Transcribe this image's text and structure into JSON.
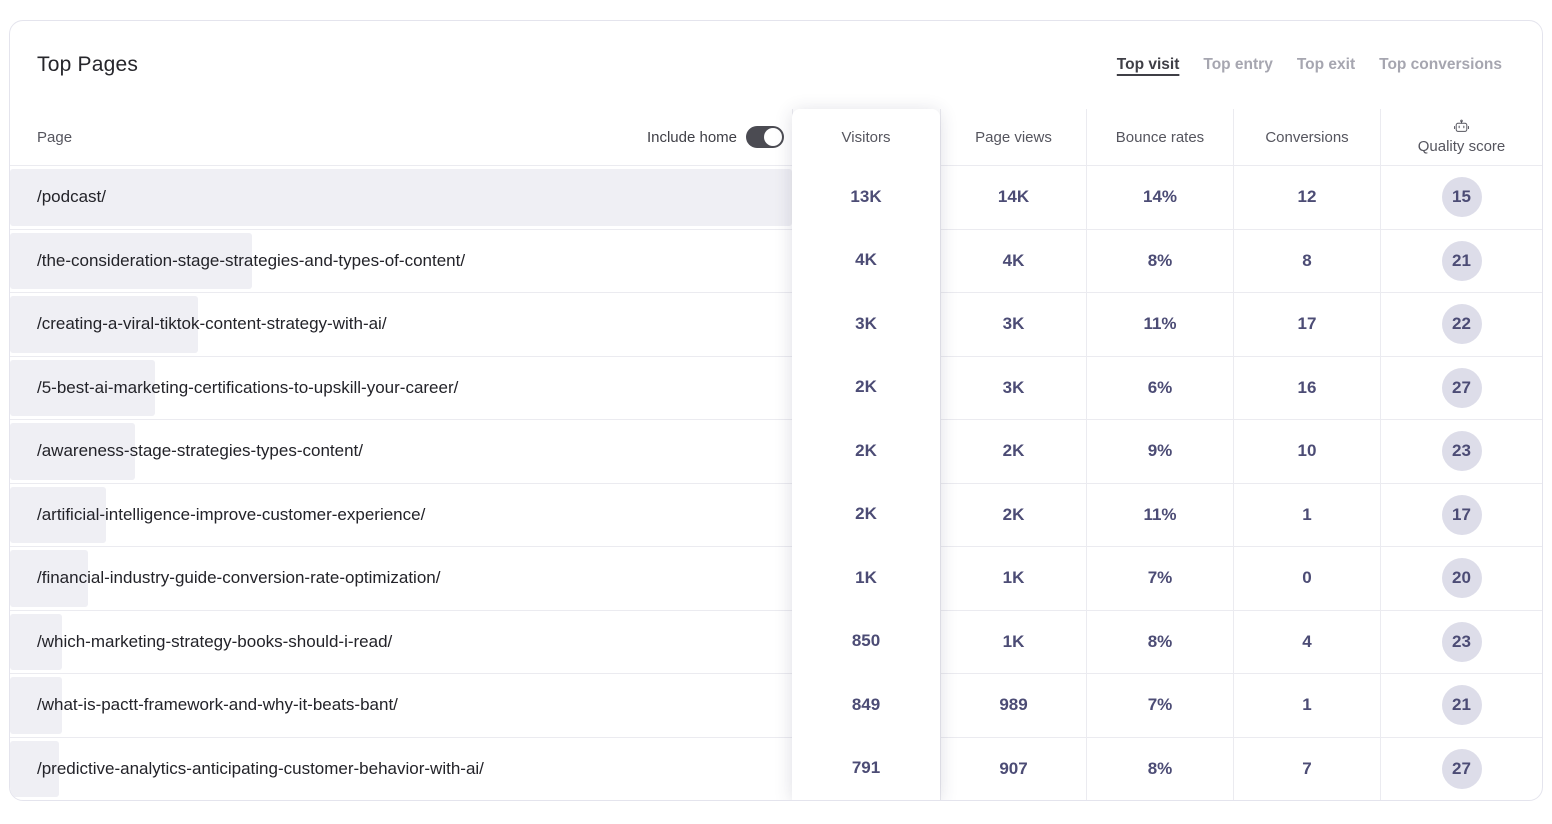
{
  "card": {
    "title": "Top Pages"
  },
  "tabs": [
    {
      "label": "Top visit",
      "active": true
    },
    {
      "label": "Top entry",
      "active": false
    },
    {
      "label": "Top exit",
      "active": false
    },
    {
      "label": "Top conversions",
      "active": false
    }
  ],
  "table": {
    "include_home_label": "Include home",
    "include_home_on": true,
    "headers": {
      "page": "Page",
      "visitors": "Visitors",
      "page_views": "Page views",
      "bounce_rates": "Bounce rates",
      "conversions": "Conversions",
      "quality_score": "Quality score"
    },
    "quality_icon": "robot-icon",
    "rows": [
      {
        "page": "/podcast/",
        "visitors": "13K",
        "page_views": "14K",
        "bounce_rate": "14%",
        "conversions": "12",
        "quality_score": "15",
        "bar_pct": 100
      },
      {
        "page": "/the-consideration-stage-strategies-and-types-of-content/",
        "visitors": "4K",
        "page_views": "4K",
        "bounce_rate": "8%",
        "conversions": "8",
        "quality_score": "21",
        "bar_pct": 31
      },
      {
        "page": "/creating-a-viral-tiktok-content-strategy-with-ai/",
        "visitors": "3K",
        "page_views": "3K",
        "bounce_rate": "11%",
        "conversions": "17",
        "quality_score": "22",
        "bar_pct": 24
      },
      {
        "page": "/5-best-ai-marketing-certifications-to-upskill-your-career/",
        "visitors": "2K",
        "page_views": "3K",
        "bounce_rate": "6%",
        "conversions": "16",
        "quality_score": "27",
        "bar_pct": 18.5
      },
      {
        "page": "/awareness-stage-strategies-types-content/",
        "visitors": "2K",
        "page_views": "2K",
        "bounce_rate": "9%",
        "conversions": "10",
        "quality_score": "23",
        "bar_pct": 16
      },
      {
        "page": "/artificial-intelligence-improve-customer-experience/",
        "visitors": "2K",
        "page_views": "2K",
        "bounce_rate": "11%",
        "conversions": "1",
        "quality_score": "17",
        "bar_pct": 12.3
      },
      {
        "page": "/financial-industry-guide-conversion-rate-optimization/",
        "visitors": "1K",
        "page_views": "1K",
        "bounce_rate": "7%",
        "conversions": "0",
        "quality_score": "20",
        "bar_pct": 10
      },
      {
        "page": "/which-marketing-strategy-books-should-i-read/",
        "visitors": "850",
        "page_views": "1K",
        "bounce_rate": "8%",
        "conversions": "4",
        "quality_score": "23",
        "bar_pct": 6.7
      },
      {
        "page": "/what-is-pactt-framework-and-why-it-beats-bant/",
        "visitors": "849",
        "page_views": "989",
        "bounce_rate": "7%",
        "conversions": "1",
        "quality_score": "21",
        "bar_pct": 6.6
      },
      {
        "page": "/predictive-analytics-anticipating-customer-behavior-with-ai/",
        "visitors": "791",
        "page_views": "907",
        "bounce_rate": "8%",
        "conversions": "7",
        "quality_score": "27",
        "bar_pct": 6.3
      }
    ]
  },
  "colors": {
    "accent_text": "#4c4c75",
    "badge_bg": "#dddde9",
    "bar_bg": "#efeff4",
    "border": "#e4e4ed",
    "toggle_on": "#4b4b52"
  }
}
